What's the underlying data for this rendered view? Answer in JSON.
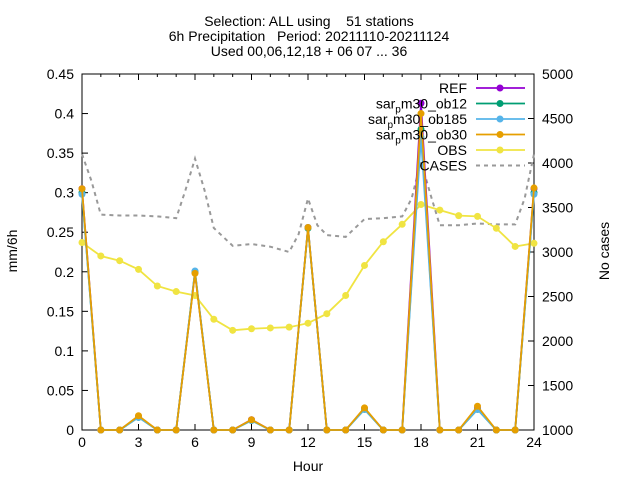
{
  "chart_data": {
    "type": "line",
    "title_lines": [
      "Selection: ALL using    51 stations",
      "6h Precipitation   Period: 20211110-20211124",
      "Used 00,06,12,18 + 06 07 ... 36"
    ],
    "xlabel": "Hour",
    "ylabel": "mm/6h",
    "y2label": "No cases",
    "xlim": [
      0,
      24
    ],
    "ylim": [
      0,
      0.45
    ],
    "y2lim": [
      1000,
      5000
    ],
    "xticks": [
      0,
      3,
      6,
      9,
      12,
      15,
      18,
      21,
      24
    ],
    "yticks": [
      0,
      0.05,
      0.1,
      0.15,
      0.2,
      0.25,
      0.3,
      0.35,
      0.4,
      0.45
    ],
    "ytick_labels": [
      "0",
      "0.05",
      "0.1",
      "0.15",
      "0.2",
      "0.25",
      "0.3",
      "0.35",
      "0.4",
      "0.45"
    ],
    "y2ticks": [
      1000,
      1500,
      2000,
      2500,
      3000,
      3500,
      4000,
      4500,
      5000
    ],
    "grid": false,
    "legend_position": "top-right",
    "x": [
      0,
      1,
      2,
      3,
      4,
      5,
      6,
      7,
      8,
      9,
      10,
      11,
      12,
      13,
      14,
      15,
      16,
      17,
      18,
      19,
      20,
      21,
      22,
      23,
      24
    ],
    "series": [
      {
        "name": "REF",
        "legend_name": "REF",
        "legend_sub": "",
        "legend_tail": "",
        "color": "#9400d3",
        "marker": "circle",
        "axis": "y",
        "values": [
          0.305,
          0,
          0,
          0.017,
          0,
          0,
          0.199,
          0,
          0,
          0.013,
          0,
          0,
          0.256,
          0,
          0,
          0.027,
          0,
          0,
          0.413,
          0,
          0,
          0.027,
          0,
          0,
          0.305
        ]
      },
      {
        "name": "sar_pm30_sob12",
        "legend_name": "sar",
        "legend_sub": "p",
        "legend_tail": "m30_ob12",
        "color": "#009e73",
        "marker": "circle",
        "axis": "y",
        "values": [
          0.3,
          0,
          0,
          0.016,
          0,
          0,
          0.2,
          0,
          0,
          0.012,
          0,
          0,
          0.255,
          0,
          0,
          0.026,
          0,
          0,
          0.38,
          0,
          0,
          0.026,
          0,
          0,
          0.3
        ]
      },
      {
        "name": "sar_pm30_ob185",
        "legend_name": "sar",
        "legend_sub": "p",
        "legend_tail": "m30_ob185",
        "color": "#56b4e9",
        "marker": "circle",
        "axis": "y",
        "values": [
          0.298,
          0,
          0,
          0.016,
          0,
          0,
          0.201,
          0,
          0,
          0.012,
          0,
          0,
          0.256,
          0,
          0,
          0.026,
          0,
          0,
          0.37,
          0,
          0,
          0.026,
          0,
          0,
          0.298
        ]
      },
      {
        "name": "sar_pm30_sob30",
        "legend_name": "sar",
        "legend_sub": "p",
        "legend_tail": "m30_ob30",
        "color": "#e69f00",
        "marker": "circle",
        "axis": "y",
        "values": [
          0.305,
          0,
          0,
          0.018,
          0,
          0,
          0.198,
          0,
          0,
          0.013,
          0,
          0,
          0.256,
          0,
          0,
          0.028,
          0,
          0,
          0.4,
          0,
          0,
          0.03,
          0,
          0,
          0.306
        ]
      },
      {
        "name": "OBS",
        "legend_name": "OBS",
        "legend_sub": "",
        "legend_tail": "",
        "color": "#f0e442",
        "marker": "circle",
        "axis": "y",
        "values": [
          0.237,
          0.22,
          0.214,
          0.203,
          0.182,
          0.175,
          0.17,
          0.14,
          0.126,
          0.128,
          0.129,
          0.13,
          0.135,
          0.147,
          0.17,
          0.208,
          0.238,
          0.26,
          0.285,
          0.278,
          0.271,
          0.27,
          0.255,
          0.232,
          0.236
        ]
      },
      {
        "name": "CASES",
        "legend_name": "CASES",
        "legend_sub": "",
        "legend_tail": "",
        "color": "#999999",
        "marker": "none",
        "dashed": true,
        "axis": "y2",
        "x": [
          0,
          0.5,
          1,
          2,
          3,
          4,
          5,
          5.5,
          6,
          6.5,
          7,
          8,
          9,
          10,
          11,
          11.5,
          12,
          12.5,
          13,
          14,
          15,
          16,
          17,
          17.5,
          18,
          18.5,
          19,
          20,
          21,
          22,
          23,
          23.5,
          24
        ],
        "values": [
          4100,
          3800,
          3420,
          3410,
          3410,
          3400,
          3380,
          3700,
          4050,
          3700,
          3270,
          3070,
          3090,
          3060,
          3000,
          3200,
          3600,
          3300,
          3190,
          3170,
          3370,
          3380,
          3400,
          3600,
          4020,
          3650,
          3300,
          3300,
          3320,
          3310,
          3310,
          3600,
          4100
        ]
      }
    ]
  }
}
